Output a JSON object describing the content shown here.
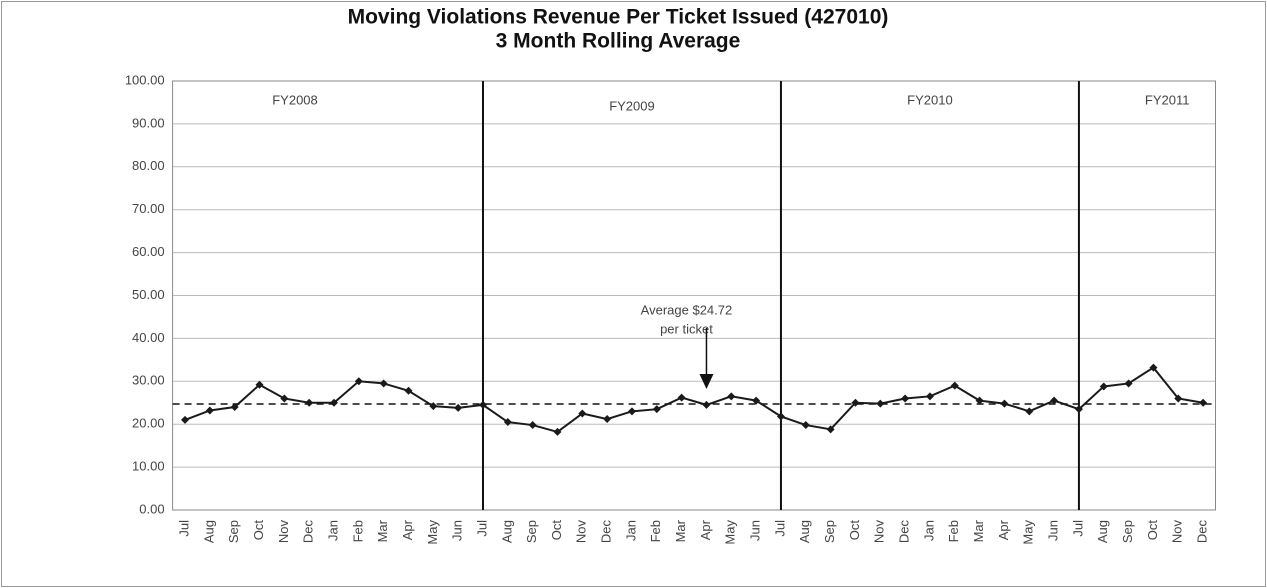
{
  "chart_data": {
    "type": "line",
    "title": "Moving Violations Revenue Per Ticket Issued (427010)",
    "subtitle": "3 Month Rolling Average",
    "categories": [
      "Jul",
      "Aug",
      "Sep",
      "Oct",
      "Nov",
      "Dec",
      "Jan",
      "Feb",
      "Mar",
      "Apr",
      "May",
      "Jun",
      "Jul",
      "Aug",
      "Sep",
      "Oct",
      "Nov",
      "Dec",
      "Jan",
      "Feb",
      "Mar",
      "Apr",
      "May",
      "Jun",
      "Jul",
      "Aug",
      "Sep",
      "Oct",
      "Nov",
      "Dec",
      "Jan",
      "Feb",
      "Mar",
      "Apr",
      "May",
      "Jun",
      "Jul",
      "Aug",
      "Sep",
      "Oct",
      "Nov",
      "Dec"
    ],
    "series": [
      {
        "name": "Revenue per ticket",
        "color": "#1a1a1a",
        "values": [
          21.0,
          23.2,
          24.0,
          29.2,
          26.0,
          25.0,
          25.0,
          30.0,
          29.5,
          27.8,
          24.2,
          23.8,
          24.5,
          20.5,
          19.8,
          18.2,
          22.5,
          21.2,
          23.0,
          23.5,
          26.2,
          24.5,
          26.5,
          25.5,
          21.8,
          19.8,
          18.8,
          25.0,
          24.8,
          26.0,
          26.5,
          29.0,
          25.5,
          24.8,
          23.0,
          25.5,
          23.5,
          28.8,
          29.5,
          33.2,
          26.0,
          25.0
        ]
      }
    ],
    "fiscal_years": [
      "FY2008",
      "FY2009",
      "FY2010",
      "FY2011"
    ],
    "average": 24.72,
    "annotation": [
      "Average $24.72",
      "per ticket"
    ],
    "ylim": [
      0,
      100
    ],
    "yticks": [
      {
        "value": 0,
        "label": "0.00"
      },
      {
        "value": 10,
        "label": "10.00"
      },
      {
        "value": 20,
        "label": "20.00"
      },
      {
        "value": 30,
        "label": "30.00"
      },
      {
        "value": 40,
        "label": "40.00"
      },
      {
        "value": 50,
        "label": "50.00"
      },
      {
        "value": 60,
        "label": "60.00"
      },
      {
        "value": 70,
        "label": "70.00"
      },
      {
        "value": 80,
        "label": "80.00"
      },
      {
        "value": 90,
        "label": "90.00"
      },
      {
        "value": 100,
        "label": "100.00"
      }
    ],
    "grid": true
  }
}
